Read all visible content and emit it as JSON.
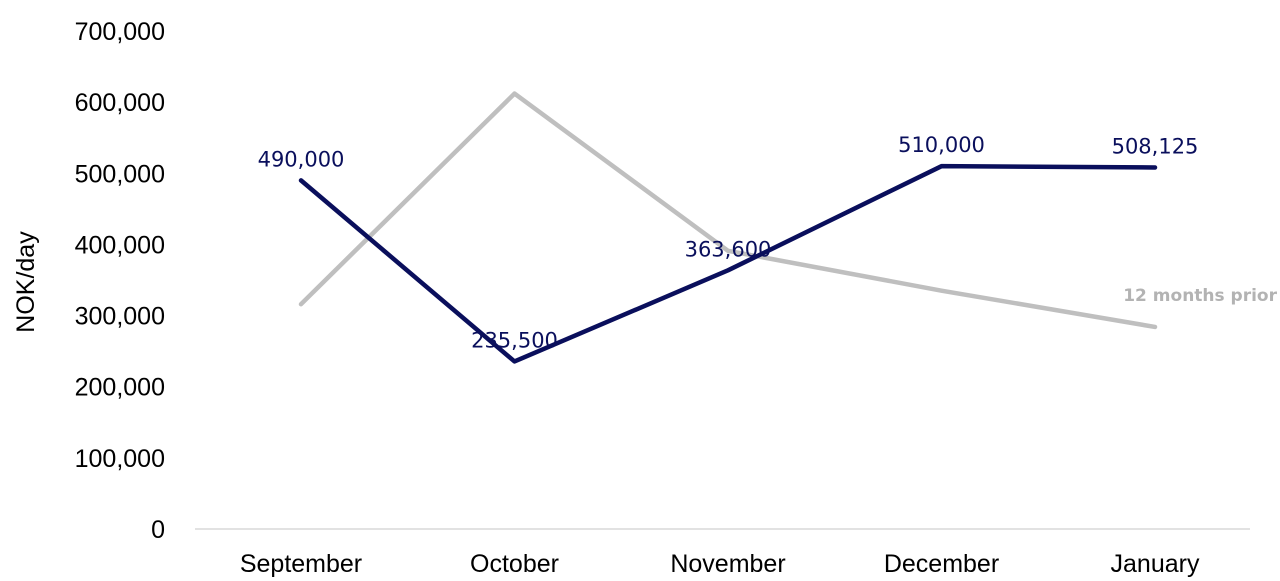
{
  "chart_data": {
    "type": "line",
    "categories": [
      "September",
      "October",
      "November",
      "December",
      "January"
    ],
    "ylabel": "NOK/day",
    "ylim": [
      0,
      700000
    ],
    "yticks": [
      "0",
      "100,000",
      "200,000",
      "300,000",
      "400,000",
      "500,000",
      "600,000",
      "700,000"
    ],
    "grid": false,
    "series": [
      {
        "name": "",
        "values": [
          490000,
          235500,
          363600,
          510000,
          508125
        ],
        "labels": [
          "490,000",
          "235,500",
          "363,600",
          "510,000",
          "508,125"
        ],
        "color": "#0a0f5c"
      },
      {
        "name": "12 months prior",
        "values": [
          316000,
          612000,
          391000,
          335000,
          284000
        ],
        "color": "#bfbfbf"
      }
    ]
  }
}
